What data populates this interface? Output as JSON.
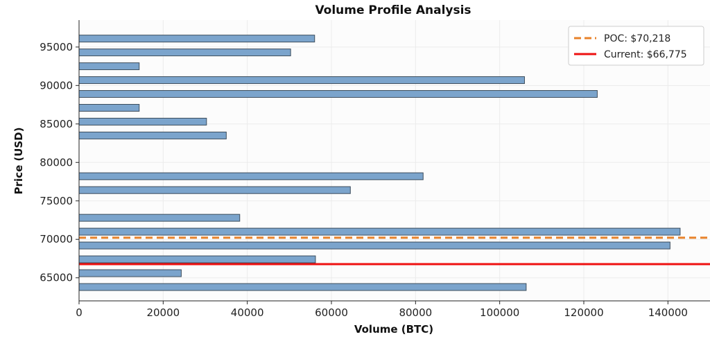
{
  "chart_data": {
    "type": "bar",
    "orientation": "horizontal",
    "title": "Volume Profile Analysis",
    "xlabel": "Volume (BTC)",
    "ylabel": "Price (USD)",
    "xlim": [
      0,
      150000
    ],
    "ylim": [
      62000,
      98500
    ],
    "xticks": [
      0,
      20000,
      40000,
      60000,
      80000,
      100000,
      120000,
      140000
    ],
    "yticks": [
      65000,
      70000,
      75000,
      80000,
      85000,
      90000,
      95000
    ],
    "grid": true,
    "bar_color": "#7ba4cc",
    "bar_edge_color": "#3d4d5c",
    "bar_height_price": 900,
    "bars": [
      {
        "price": 96100,
        "volume": 56000
      },
      {
        "price": 94300,
        "volume": 50300
      },
      {
        "price": 92500,
        "volume": 14300
      },
      {
        "price": 90700,
        "volume": 105900
      },
      {
        "price": 88900,
        "volume": 123200
      },
      {
        "price": 87100,
        "volume": 14300
      },
      {
        "price": 85300,
        "volume": 30300
      },
      {
        "price": 83500,
        "volume": 35000
      },
      {
        "price": 78200,
        "volume": 81800
      },
      {
        "price": 76400,
        "volume": 64500
      },
      {
        "price": 72800,
        "volume": 38200
      },
      {
        "price": 71000,
        "volume": 142900
      },
      {
        "price": 69200,
        "volume": 140500
      },
      {
        "price": 67400,
        "volume": 56200
      },
      {
        "price": 65600,
        "volume": 24300
      },
      {
        "price": 63800,
        "volume": 106300
      }
    ],
    "lines": [
      {
        "name": "POC",
        "label": "POC: $70,218",
        "price": 70218,
        "color": "#e8822a",
        "style": "dashed"
      },
      {
        "name": "Current",
        "label": "Current: $66,775",
        "price": 66775,
        "color": "#ee1111",
        "style": "solid"
      }
    ],
    "legend_position": "top-right"
  }
}
